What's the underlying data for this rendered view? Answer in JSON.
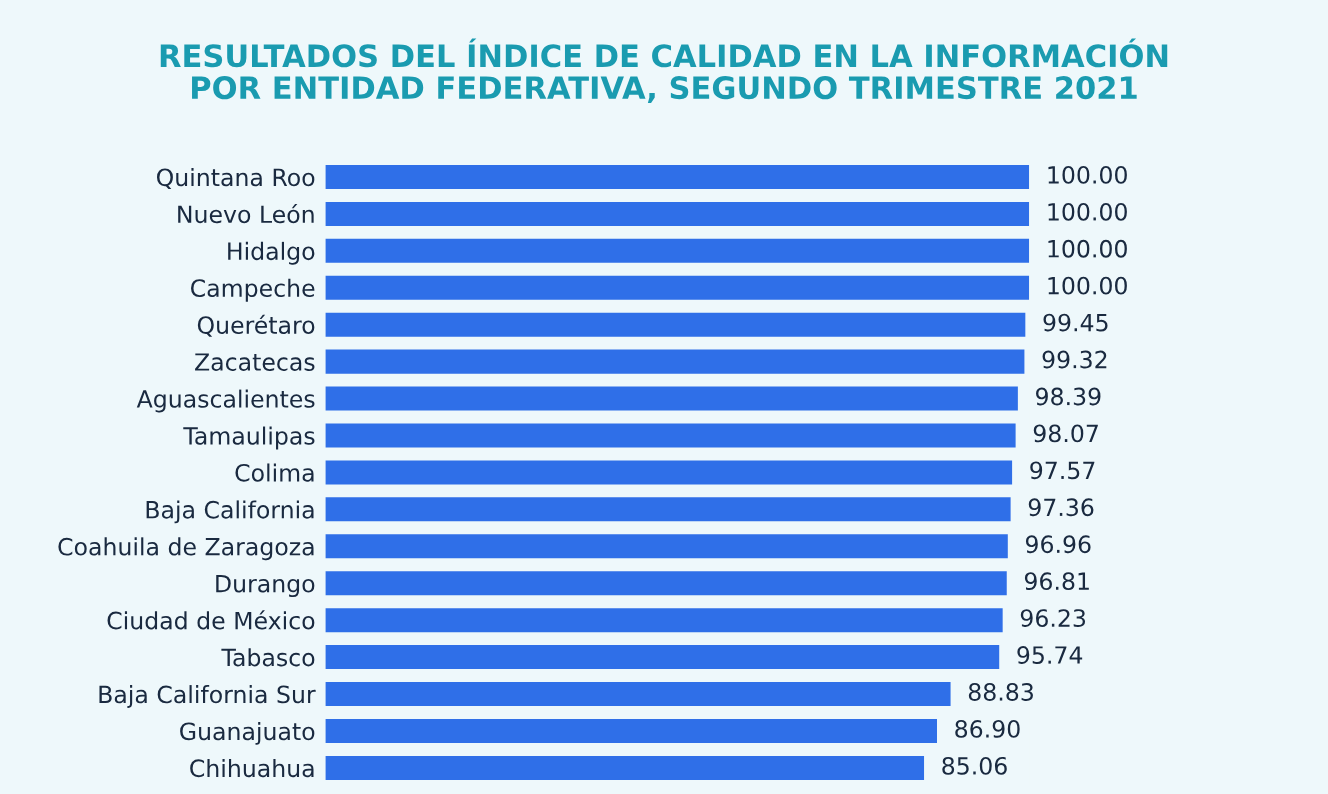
{
  "chart_data": {
    "type": "bar",
    "orientation": "horizontal",
    "title": "RESULTADOS DEL ÍNDICE DE CALIDAD EN LA INFORMACIÓN\nPOR ENTIDAD FEDERATIVA, SEGUNDO TRIMESTRE 2021",
    "categories": [
      "Quintana Roo",
      "Nuevo León",
      "Hidalgo",
      "Campeche",
      "Querétaro",
      "Zacatecas",
      "Aguascalientes",
      "Tamaulipas",
      "Colima",
      "Baja California",
      "Coahuila de Zaragoza",
      "Durango",
      "Ciudad de México",
      "Tabasco",
      "Baja California Sur",
      "Guanajuato",
      "Chihuahua"
    ],
    "values": [
      100.0,
      100.0,
      100.0,
      100.0,
      99.45,
      99.32,
      98.39,
      98.07,
      97.57,
      97.36,
      96.96,
      96.81,
      96.23,
      95.74,
      88.83,
      86.9,
      85.06
    ],
    "value_labels": [
      "100.00",
      "100.00",
      "100.00",
      "100.00",
      "99.45",
      "99.32",
      "98.39",
      "98.07",
      "97.57",
      "97.36",
      "96.96",
      "96.81",
      "96.23",
      "95.74",
      "88.83",
      "86.90",
      "85.06"
    ],
    "color": "#2f6fe8"
  }
}
